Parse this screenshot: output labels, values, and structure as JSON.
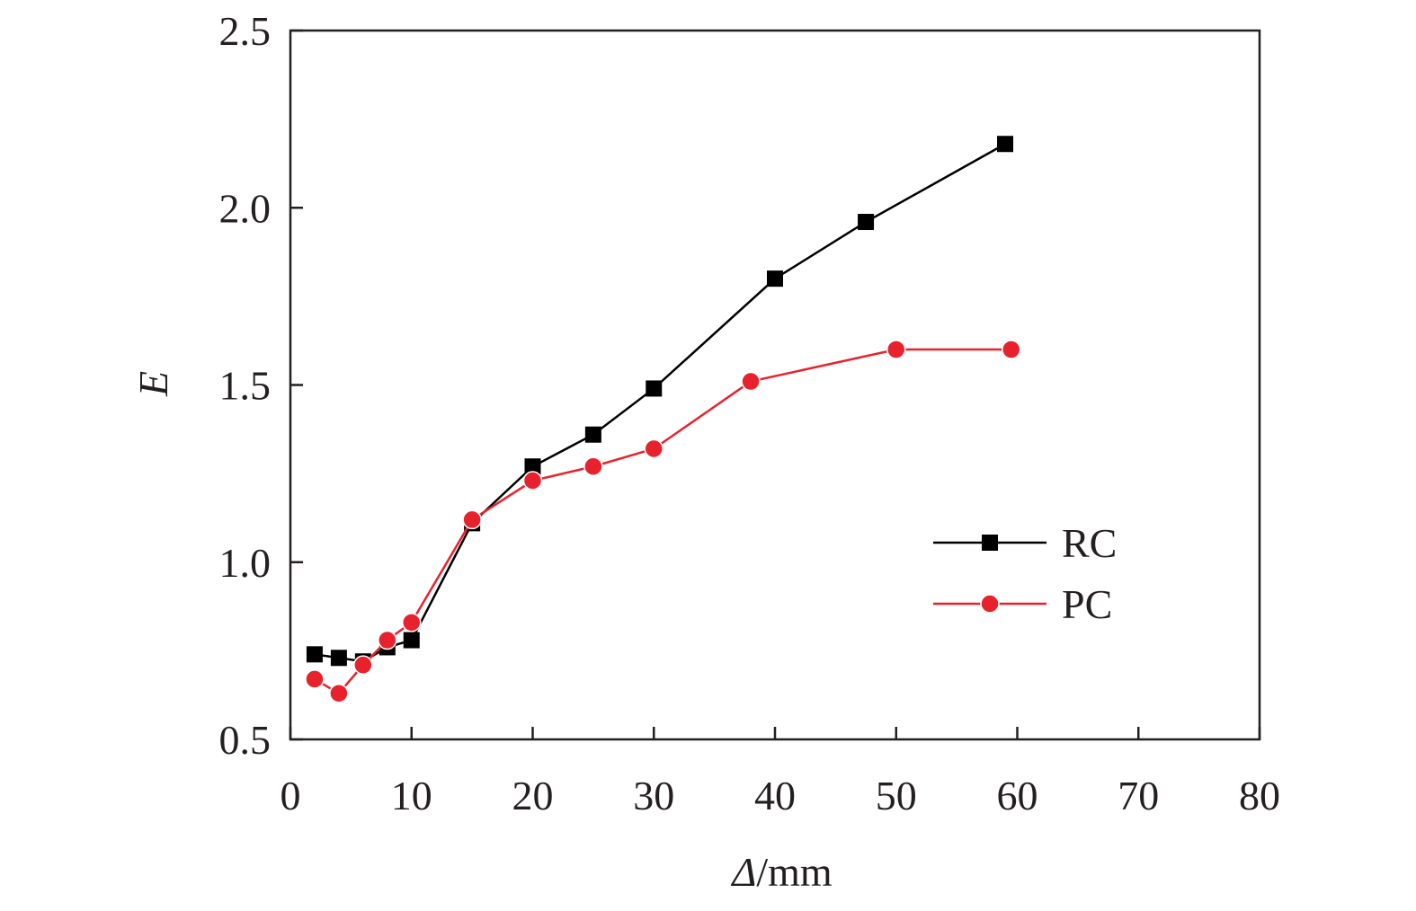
{
  "chart_data": {
    "type": "line",
    "title": "",
    "xlabel_italic": "Δ",
    "xlabel_unit": "/mm",
    "ylabel": "E",
    "xlim": [
      0,
      80
    ],
    "ylim": [
      0.5,
      2.5
    ],
    "xticks": [
      0,
      10,
      20,
      30,
      40,
      50,
      60,
      70,
      80
    ],
    "yticks": [
      0.5,
      1.0,
      1.5,
      2.0,
      2.5
    ],
    "xtick_labels": [
      "0",
      "10",
      "20",
      "30",
      "40",
      "50",
      "60",
      "70",
      "80"
    ],
    "ytick_labels": [
      "0.5",
      "1.0",
      "1.5",
      "2.0",
      "2.5"
    ],
    "grid": false,
    "legend_position": "right-middle",
    "series": [
      {
        "name": "RC",
        "color": "#000000",
        "marker": "square",
        "x": [
          2,
          4,
          6,
          8,
          10,
          15,
          20,
          25,
          30,
          40,
          47.5,
          59
        ],
        "y": [
          0.74,
          0.73,
          0.72,
          0.76,
          0.78,
          1.11,
          1.27,
          1.36,
          1.49,
          1.8,
          1.96,
          2.18
        ]
      },
      {
        "name": "PC",
        "color": "#e8222d",
        "marker": "circle",
        "x": [
          2,
          4,
          6,
          8,
          10,
          15,
          20,
          25,
          30,
          38,
          50,
          59.5
        ],
        "y": [
          0.67,
          0.63,
          0.71,
          0.78,
          0.83,
          1.12,
          1.23,
          1.27,
          1.32,
          1.51,
          1.6,
          1.6
        ]
      }
    ]
  }
}
